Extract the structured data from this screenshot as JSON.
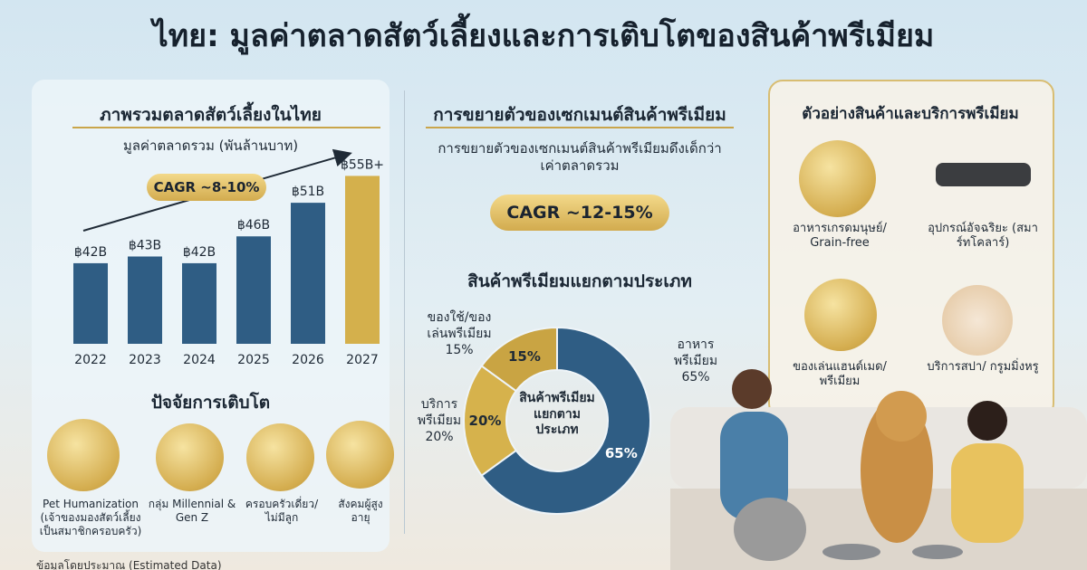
{
  "title": "ไทย: มูลค่าตลาดสัตว์เลี้ยงและการเติบโตของสินค้าพรีเมียม",
  "chart_data": [
    {
      "type": "bar",
      "title": "ภาพรวมตลาดสัตว์เลี้ยงในไทย",
      "subtitle": "มูลค่าตลาดรวม (พันล้านบาท)",
      "annotation": "CAGR ~8-10%",
      "categories": [
        "2022",
        "2023",
        "2024",
        "2025",
        "2026",
        "2027"
      ],
      "values": [
        42,
        43,
        42,
        46,
        51,
        55
      ],
      "value_labels": [
        "฿42B",
        "฿43B",
        "฿42B",
        "฿46B",
        "฿51B",
        "฿55B+"
      ],
      "colors": [
        "#2f5d84",
        "#2f5d84",
        "#2f5d84",
        "#2f5d84",
        "#2f5d84",
        "#d4b04c"
      ],
      "ylim": [
        30,
        56
      ]
    },
    {
      "type": "donut",
      "title": "สินค้าพรีเมียมแยกตามประเภท",
      "center_label": "สินค้าพรีเมียมแยกตามประเภท",
      "categories": [
        "อาหารพรีเมียม",
        "บริการพรีเมียม",
        "ของใช้/ของเล่นพรีเมียม"
      ],
      "values": [
        65,
        20,
        15
      ],
      "value_labels": [
        "65%",
        "20%",
        "15%"
      ],
      "colors": [
        "#2f5d84",
        "#d6b24c",
        "#c9a443"
      ]
    }
  ],
  "growth_factors": {
    "title": "ปัจจัยการเติบโต",
    "items": [
      "Pet Humanization (เจ้าของมองสัตว์เลี้ยงเป็นสมาชิกครอบครัว)",
      "กลุ่ม Millennial & Gen Z",
      "ครอบครัวเดี่ยว/ไม่มีลูก",
      "สังคมผู้สูงอายุ"
    ]
  },
  "premium_growth": {
    "title": "การขยายตัวของเซกเมนต์สินค้าพรีเมียม",
    "description": "การขยายตัวของเซกเมนต์สินค้าพรีเมียมดึงเด็กว่าเค่าตลาดรวม",
    "cagr": "CAGR ~12-15%"
  },
  "examples": {
    "title": "ตัวอย่างสินค้าและบริการพรีเมียม",
    "items": [
      "อาหารเกรดมนุษย์/ Grain-free",
      "อุปกรณ์อัจฉริยะ (สมาร์ทโคลาร์)",
      "ของเล่นแฮนด์เมด/ พรีเมียม",
      "บริการสปา/ กรูมมิ่งหรู"
    ]
  },
  "footer": "ข้อมูลโดยประมาณ (Estimated Data)"
}
